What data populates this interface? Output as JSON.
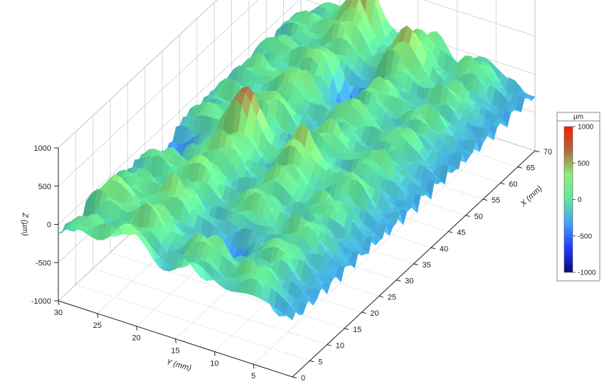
{
  "chart_data": {
    "type": "surface3d",
    "title": "",
    "x_axis": {
      "label": "X (mm)",
      "range": [
        0,
        70
      ],
      "ticks": [
        0,
        5,
        10,
        15,
        20,
        25,
        30,
        35,
        40,
        45,
        50,
        55,
        60,
        65,
        70
      ]
    },
    "y_axis": {
      "label": "Y (mm)",
      "range": [
        0,
        30
      ],
      "ticks": [
        5,
        10,
        15,
        20,
        25,
        30
      ]
    },
    "z_axis": {
      "label": "Z (µm)",
      "range": [
        -1000,
        1000
      ],
      "ticks": [
        -1000,
        -500,
        0,
        500,
        1000
      ]
    },
    "colorbar": {
      "unit": "µm",
      "ticks": [
        1000,
        500,
        0,
        -500,
        -1000
      ],
      "range": [
        -1000,
        1000
      ],
      "placement": "right",
      "colors": [
        "#0a0a78",
        "#1f3cff",
        "#3fa0ff",
        "#5fe7a0",
        "#8ff07a",
        "#b06a40",
        "#ff1a00"
      ]
    },
    "grid": true,
    "surface": {
      "description_ridges_y_mm": [
        27,
        21,
        13,
        6
      ],
      "ridge_amplitude_um": [
        350,
        520,
        450,
        380
      ],
      "peaks": [
        {
          "x": 67,
          "y": 21,
          "z": 950
        },
        {
          "x": 33,
          "y": 21,
          "z": 880
        },
        {
          "x": 10,
          "y": 27,
          "z": 600
        },
        {
          "x": 31,
          "y": 13,
          "z": 700
        },
        {
          "x": 63,
          "y": 13,
          "z": 800
        }
      ],
      "pits": [
        {
          "x": 11,
          "y": 13,
          "z": -780
        },
        {
          "x": 30,
          "y": 28,
          "z": -600
        },
        {
          "x": 55,
          "y": 17,
          "z": -560
        }
      ]
    }
  }
}
